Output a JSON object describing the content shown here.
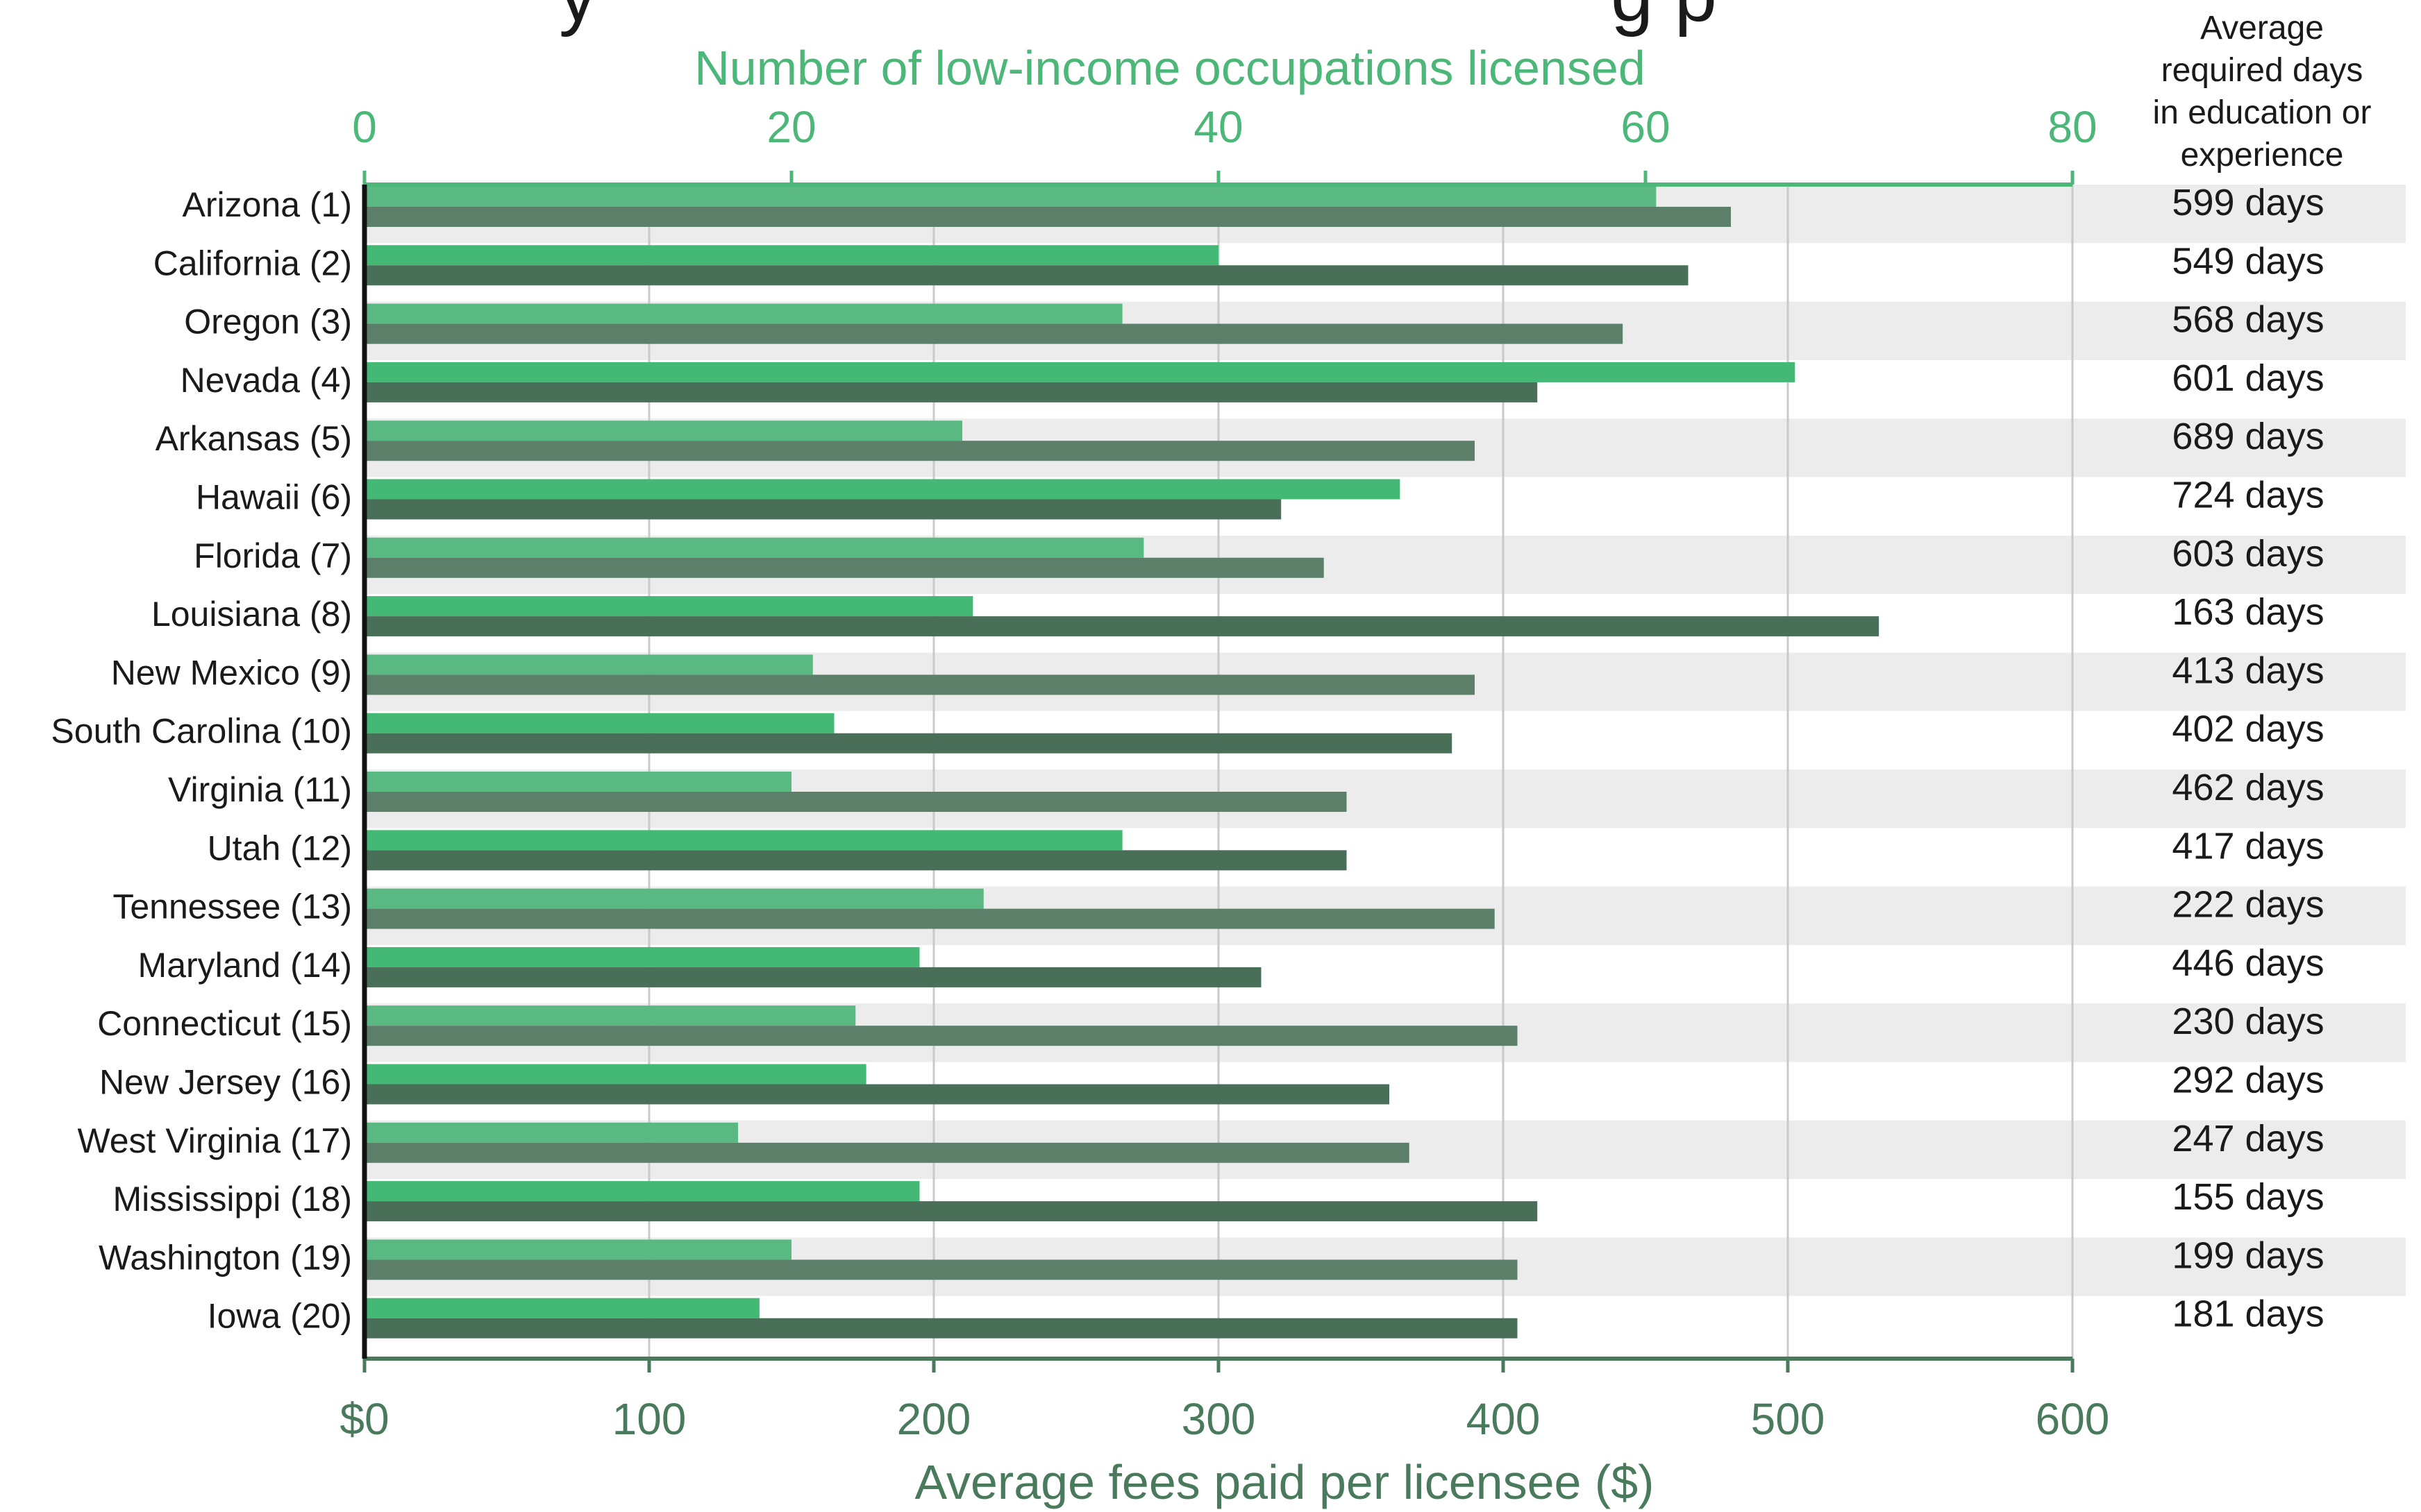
{
  "chart_data": {
    "type": "bar",
    "title_partial": "y",
    "title_partial_right": "g p",
    "categories": [
      "Arizona (1)",
      "California (2)",
      "Oregon (3)",
      "Nevada (4)",
      "Arkansas (5)",
      "Hawaii (6)",
      "Florida (7)",
      "Louisiana (8)",
      "New Mexico (9)",
      "South Carolina (10)",
      "Virginia (11)",
      "Utah (12)",
      "Tennessee (13)",
      "Maryland (14)",
      "Connecticut (15)",
      "New Jersey (16)",
      "West Virginia (17)",
      "Mississippi (18)",
      "Washington (19)",
      "Iowa (20)"
    ],
    "series": [
      {
        "axis": "top",
        "values": [
          60.5,
          40,
          35.5,
          67,
          28,
          48.5,
          36.5,
          28.5,
          21,
          22,
          20,
          35.5,
          29,
          26,
          23,
          23.5,
          17.5,
          26,
          20,
          18.5
        ]
      },
      {
        "axis": "bottom",
        "values": [
          480,
          465,
          442,
          412,
          390,
          322,
          337,
          532,
          390,
          382,
          345,
          345,
          397,
          315,
          405,
          360,
          367,
          412,
          405,
          405
        ]
      }
    ],
    "top_axis": {
      "label": "Number of low-income occupations licensed",
      "range": [
        0,
        80
      ],
      "ticks": [
        "0",
        "20",
        "40",
        "60",
        "80"
      ]
    },
    "bottom_axis": {
      "label": "Average fees paid per licensee ($)",
      "range": [
        0,
        600
      ],
      "ticks": [
        "$0",
        "100",
        "200",
        "300",
        "400",
        "500",
        "600"
      ]
    },
    "days_header": [
      "Average",
      "required days",
      "in education or",
      "experience"
    ],
    "days": [
      "599 days",
      "549 days",
      "568 days",
      "601 days",
      "689 days",
      "724 days",
      "603 days",
      "163 days",
      "413 days",
      "402 days",
      "462 days",
      "417 days",
      "222 days",
      "446 days",
      "230 days",
      "292 days",
      "247 days",
      "155 days",
      "199 days",
      "181 days"
    ],
    "grid": true,
    "colors": {
      "count_bar_odd": "#5ab882",
      "count_bar_even": "#44b875",
      "fee_bar_odd": "#5c7f6a",
      "fee_bar_even": "#4a6f58",
      "stripe": "#ececec",
      "top_axis": "#4db77a",
      "bottom_axis": "#4a7a5c"
    }
  }
}
